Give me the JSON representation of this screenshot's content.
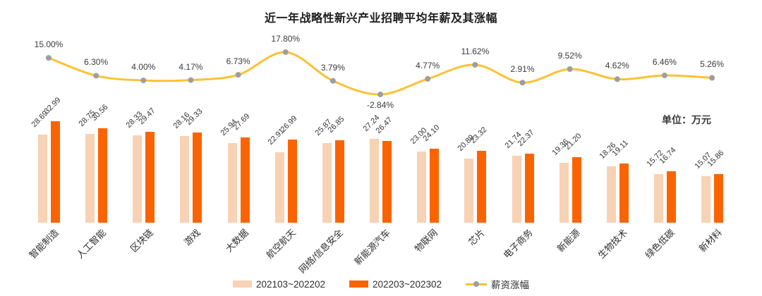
{
  "title": "近一年战略性新兴产业招聘平均年薪及其涨幅",
  "unit_label": "单位：万元",
  "colors": {
    "bar_prev": "#F8D2B5",
    "bar_curr": "#FA6400",
    "line": "#FBC234",
    "marker": "#9E9E9E",
    "label_text": "#333333",
    "title_text": "#1C1C1C"
  },
  "legend": {
    "items": [
      {
        "label": "202103~202202",
        "type": "bar"
      },
      {
        "label": "202203~202302",
        "type": "bar"
      },
      {
        "label": "薪资涨幅",
        "type": "line"
      }
    ]
  },
  "chart_data": {
    "type": "bar",
    "title": "近一年战略性新兴产业招聘平均年薪及其涨幅",
    "unit": "万元",
    "legend_position": "bottom",
    "grid": false,
    "categories": [
      "智能制造",
      "人工智能",
      "区块链",
      "游戏",
      "大数据",
      "航空航天",
      "网络/信息安全",
      "新能源汽车",
      "物联网",
      "芯片",
      "电子商务",
      "新能源",
      "生物技术",
      "绿色低碳",
      "新材料"
    ],
    "series": [
      {
        "name": "202103~202202",
        "type": "bar",
        "values": [
          28.69,
          28.75,
          28.33,
          28.16,
          25.94,
          22.91,
          25.87,
          27.24,
          23.0,
          20.89,
          21.74,
          19.36,
          18.26,
          15.72,
          15.07
        ]
      },
      {
        "name": "202203~202302",
        "type": "bar",
        "values": [
          32.99,
          30.56,
          29.47,
          29.33,
          27.69,
          26.99,
          26.85,
          26.47,
          24.1,
          23.32,
          22.37,
          21.2,
          19.11,
          16.74,
          15.86
        ]
      },
      {
        "name": "薪资涨幅",
        "type": "line",
        "unit": "%",
        "values": [
          15.0,
          6.3,
          4.0,
          4.17,
          6.73,
          17.8,
          3.79,
          -2.84,
          4.77,
          11.62,
          2.91,
          9.52,
          4.62,
          6.46,
          5.26
        ]
      }
    ]
  }
}
